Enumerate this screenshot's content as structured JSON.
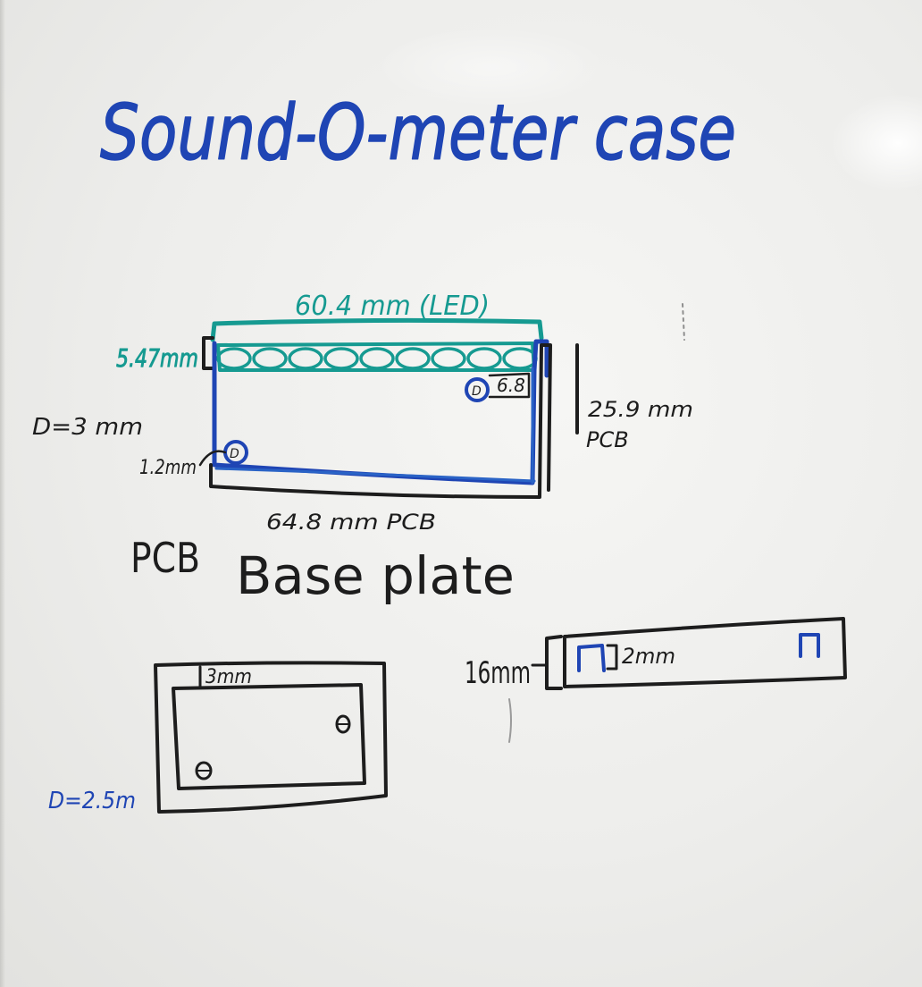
{
  "board": {
    "title": "Sound-O-meter case",
    "pcb_section": {
      "led_width": "60.4 mm (LED)",
      "led_height": "5.47mm",
      "led_count": 9,
      "corner_note": "6.8",
      "pcb_height": "25.9 mm",
      "pcb_height_label": "PCB",
      "hole_offset": "1.2mm",
      "hole_diameter": "D=3 mm",
      "pcb_width": "64.8 mm PCB",
      "caption": "PCB"
    },
    "base_plate_section": {
      "caption": "Base plate",
      "wall": "3mm",
      "hole_diameter": "D=2.5m"
    },
    "side_section": {
      "height": "16mm",
      "lip": "2mm"
    },
    "colors": {
      "blue_ink": "#1f45b4",
      "teal_ink": "#169a91",
      "black_ink": "#1d1d1d",
      "board": "#f0f0ee"
    }
  }
}
